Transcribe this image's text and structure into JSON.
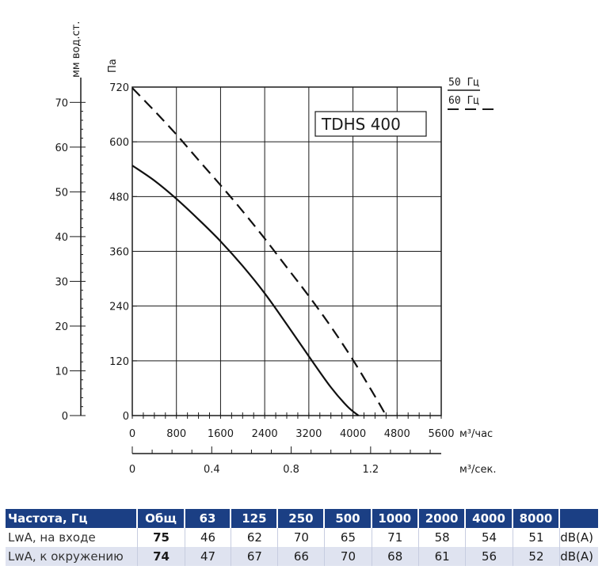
{
  "chart_data": {
    "type": "line",
    "title": "TDHS 400",
    "left_axis_label": "мм вод.ст.",
    "left_axis_ticks": [
      0,
      10,
      20,
      30,
      40,
      50,
      60,
      70
    ],
    "pa_axis_label": "Па",
    "pa_axis_ticks": [
      0,
      120,
      240,
      360,
      480,
      600,
      720
    ],
    "xlabel_hour": "м³/час",
    "x_hour_ticks": [
      0,
      800,
      1600,
      2400,
      3200,
      4000,
      4800,
      5600
    ],
    "xlabel_sec": "м³/сек.",
    "x_sec_ticks": [
      "0",
      "0.4",
      "0.8",
      "1.2"
    ],
    "xlim": [
      0,
      5600
    ],
    "ylim": [
      0,
      720
    ],
    "grid": true,
    "legend": [
      {
        "label": "50 Гц",
        "style": "solid"
      },
      {
        "label": "60 Гц",
        "style": "dashed"
      }
    ],
    "series": [
      {
        "name": "50 Гц",
        "style": "solid",
        "x": [
          0,
          400,
          800,
          1200,
          1600,
          2000,
          2400,
          2800,
          3200,
          3600,
          3900,
          4100
        ],
        "y": [
          548,
          515,
          475,
          430,
          382,
          328,
          268,
          200,
          130,
          62,
          20,
          0
        ]
      },
      {
        "name": "60 Гц",
        "style": "dashed",
        "x": [
          0,
          400,
          800,
          1200,
          1600,
          2000,
          2400,
          2800,
          3200,
          3600,
          4000,
          4400,
          4600
        ],
        "y": [
          718,
          668,
          616,
          560,
          505,
          448,
          388,
          325,
          262,
          195,
          122,
          42,
          0
        ]
      }
    ]
  },
  "noise_table": {
    "header": {
      "label": "Частота, Гц",
      "total": "Общ",
      "bands": [
        "63",
        "125",
        "250",
        "500",
        "1000",
        "2000",
        "4000",
        "8000"
      ]
    },
    "rows": [
      {
        "label": "LwA, на входе",
        "total": "75",
        "values": [
          "46",
          "62",
          "70",
          "65",
          "71",
          "58",
          "54",
          "51"
        ],
        "unit": "dB(A)"
      },
      {
        "label": "LwA, к окружению",
        "total": "74",
        "values": [
          "47",
          "67",
          "66",
          "70",
          "68",
          "61",
          "56",
          "52"
        ],
        "unit": "dB(A)"
      }
    ]
  }
}
